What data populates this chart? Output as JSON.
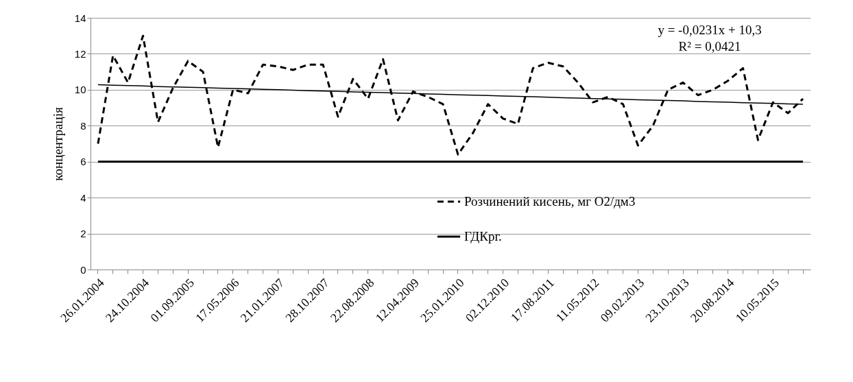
{
  "chart_data": {
    "type": "line",
    "ylabel": "концентрація",
    "categories": [
      "26.01.2004",
      null,
      null,
      "24.10.2004",
      null,
      null,
      "01.09.2005",
      null,
      null,
      "17.05.2006",
      null,
      null,
      "21.01.2007",
      null,
      null,
      "28.10.2007",
      null,
      null,
      "22.08.2008",
      null,
      null,
      "12.04.2009",
      null,
      null,
      "25.01.2010",
      null,
      null,
      "02.12.2010",
      null,
      null,
      "17.08.2011",
      null,
      null,
      "11.05.2012",
      null,
      null,
      "09.02.2013",
      null,
      null,
      "23.10.2013",
      null,
      null,
      "20.08.2014",
      null,
      null,
      "10.05.2015",
      null,
      null
    ],
    "series": [
      {
        "name": "Розчинений кисень, мг О2/дм3",
        "color": "#000000",
        "line_style": "dashed",
        "values": [
          7.0,
          11.9,
          10.4,
          13.0,
          8.2,
          10.1,
          11.6,
          11.0,
          6.8,
          10.0,
          9.8,
          11.4,
          11.3,
          11.1,
          11.4,
          11.4,
          8.5,
          10.6,
          9.5,
          11.7,
          8.3,
          9.9,
          9.6,
          9.2,
          6.4,
          7.6,
          9.2,
          8.4,
          8.1,
          11.2,
          11.5,
          11.3,
          10.4,
          9.3,
          9.6,
          9.2,
          6.9,
          8.0,
          10.0,
          10.4,
          9.7,
          10.0,
          10.5,
          11.2,
          7.2,
          9.3,
          8.7,
          9.5
        ]
      },
      {
        "name": "ГДКрг.",
        "color": "#000000",
        "line_style": "solid",
        "values": [
          6,
          6,
          6,
          6,
          6,
          6,
          6,
          6,
          6,
          6,
          6,
          6,
          6,
          6,
          6,
          6,
          6,
          6,
          6,
          6,
          6,
          6,
          6,
          6,
          6,
          6,
          6,
          6,
          6,
          6,
          6,
          6,
          6,
          6,
          6,
          6,
          6,
          6,
          6,
          6,
          6,
          6,
          6,
          6,
          6,
          6,
          6,
          6
        ]
      },
      {
        "color": "#000000",
        "line_style": "solid",
        "values": [
          10.28,
          10.25,
          10.23,
          10.21,
          10.18,
          10.16,
          10.14,
          10.12,
          10.09,
          10.07,
          10.05,
          10.02,
          10.0,
          9.98,
          9.95,
          9.93,
          9.91,
          9.88,
          9.86,
          9.84,
          9.81,
          9.79,
          9.77,
          9.75,
          9.72,
          9.7,
          9.68,
          9.65,
          9.63,
          9.61,
          9.58,
          9.56,
          9.54,
          9.51,
          9.49,
          9.47,
          9.44,
          9.42,
          9.4,
          9.38,
          9.35,
          9.33,
          9.31,
          9.28,
          9.26,
          9.24,
          9.21,
          9.19
        ]
      }
    ],
    "ylim": [
      0,
      14
    ],
    "yticks": [
      0,
      2,
      4,
      6,
      8,
      10,
      12,
      14
    ],
    "grid": "y",
    "legend": "bottom right",
    "marker": "none",
    "annotations": [
      "y = -0,0231x + 10,3",
      "R² = 0,0421"
    ]
  }
}
